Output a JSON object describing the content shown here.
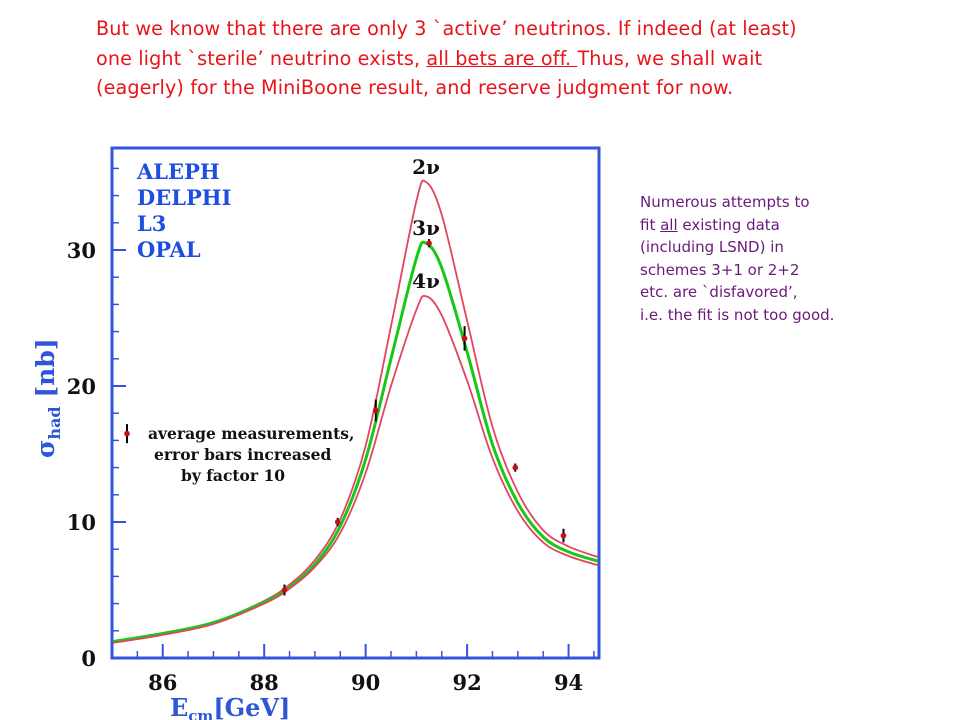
{
  "top_text": {
    "line1": "But we know that there are only 3 `active’ neutrinos. If indeed (at least)",
    "line2_pre": "one light `sterile’ neutrino exists, ",
    "line2_underlined": "all bets are off. ",
    "line2_post": "Thus, we shall wait",
    "line3": "(eagerly) for the MiniBoone result, and reserve judgment for now."
  },
  "side_note": {
    "line1": "Numerous attempts to",
    "line2_pre": "fit ",
    "line2_underlined": "all",
    "line2_post": " existing data",
    "line3": "(including LSND) in",
    "line4": "schemes 3+1 or 2+2",
    "line5": "etc. are `disfavored’,",
    "line6": "i.e. the fit is not too good."
  },
  "colors": {
    "top_text": "#e8141a",
    "side_note": "#6a1b7a",
    "frame": "#3355dd",
    "axis_label": "#2f56d8",
    "legend": "#1f4de0",
    "curve_2nu_4nu": "#e2455e",
    "curve_3nu": "#18c818",
    "points": "#c0101a"
  },
  "chart_data": {
    "type": "line",
    "xlabel_main": "E",
    "xlabel_sub": "cm",
    "xlabel_unit": "[GeV]",
    "ylabel_main": "σ",
    "ylabel_sub": "had",
    "ylabel_unit": "[nb]",
    "xlim": [
      85.0,
      94.6
    ],
    "ylim": [
      0,
      37.5
    ],
    "xticks": [
      86,
      88,
      90,
      92,
      94
    ],
    "yticks": [
      0,
      10,
      20,
      30
    ],
    "experiments": [
      "ALEPH",
      "DELPHI",
      "L3",
      "OPAL"
    ],
    "series": [
      {
        "name": "2ν",
        "peak_x": 91.19,
        "peak_y": 35.0,
        "x": [
          85.0,
          86.0,
          87.0,
          88.0,
          88.5,
          89.0,
          89.5,
          90.0,
          90.5,
          91.0,
          91.19,
          91.5,
          92.0,
          92.5,
          93.0,
          93.5,
          94.0,
          94.6
        ],
        "y": [
          1.2,
          1.8,
          2.6,
          4.2,
          5.4,
          7.2,
          10.2,
          15.6,
          24.4,
          33.6,
          35.0,
          32.6,
          24.8,
          17.0,
          12.2,
          9.4,
          8.2,
          7.4
        ]
      },
      {
        "name": "3ν",
        "peak_x": 91.19,
        "peak_y": 30.5,
        "x": [
          85.0,
          86.0,
          87.0,
          88.0,
          88.5,
          89.0,
          89.5,
          90.0,
          90.5,
          91.0,
          91.19,
          91.5,
          92.0,
          92.5,
          93.0,
          93.5,
          94.0,
          94.6
        ],
        "y": [
          1.2,
          1.8,
          2.6,
          4.1,
          5.2,
          6.9,
          9.7,
          14.6,
          22.0,
          29.4,
          30.5,
          28.7,
          22.5,
          15.7,
          11.4,
          8.9,
          7.8,
          7.1
        ]
      },
      {
        "name": "4ν",
        "peak_x": 91.19,
        "peak_y": 26.6,
        "x": [
          85.0,
          86.0,
          87.0,
          88.0,
          88.5,
          89.0,
          89.5,
          90.0,
          90.5,
          91.0,
          91.19,
          91.5,
          92.0,
          92.5,
          93.0,
          93.5,
          94.0,
          94.6
        ],
        "y": [
          1.1,
          1.7,
          2.5,
          4.0,
          5.1,
          6.7,
          9.2,
          13.6,
          20.0,
          25.6,
          26.6,
          25.2,
          20.4,
          14.7,
          10.8,
          8.5,
          7.5,
          6.8
        ]
      }
    ],
    "points": [
      {
        "x": 88.4,
        "y": 5.0,
        "err": 0.4
      },
      {
        "x": 89.45,
        "y": 10.0,
        "err": 0.3
      },
      {
        "x": 90.2,
        "y": 18.2,
        "err": 0.8
      },
      {
        "x": 91.25,
        "y": 30.5,
        "err": 0.3
      },
      {
        "x": 91.95,
        "y": 23.5,
        "err": 0.9
      },
      {
        "x": 92.95,
        "y": 14.0,
        "err": 0.3
      },
      {
        "x": 93.9,
        "y": 9.0,
        "err": 0.5
      }
    ],
    "legend_note": [
      "average measurements,",
      "error bars increased",
      "by factor 10"
    ],
    "legend_marker_y": 16.5,
    "legend_marker_err": 0.7
  }
}
